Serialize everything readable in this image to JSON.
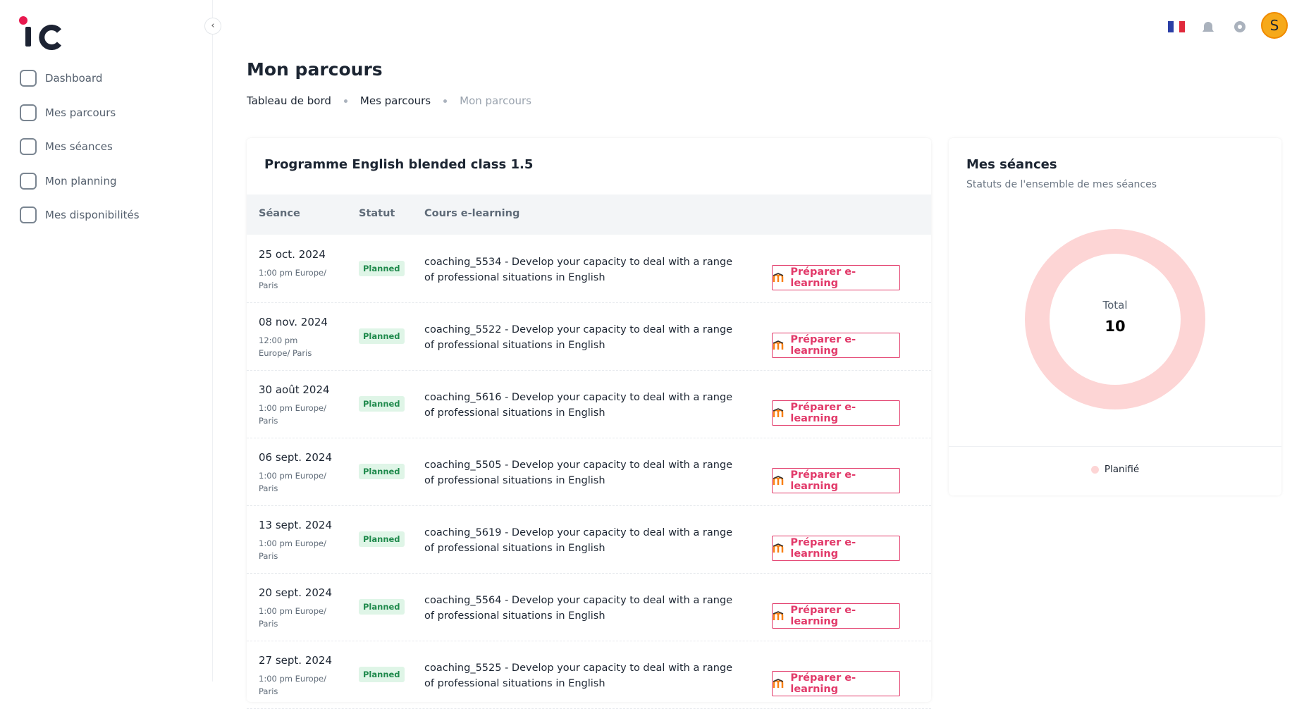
{
  "logo": "IC",
  "nav": [
    "Dashboard",
    "Mes parcours",
    "Mes séances",
    "Mon planning",
    "Mes disponibilités"
  ],
  "avatar": "S",
  "header": {
    "title": "Mon parcours",
    "breadcrumbs": [
      "Tableau de bord",
      "Mes parcours",
      "Mon parcours"
    ]
  },
  "table": {
    "title": "Programme English blended class 1.5",
    "columns": [
      "Séance",
      "Statut",
      "Cours e-learning"
    ],
    "rows": [
      {
        "date": "25 oct. 2024",
        "time": "1:00 pm Europe/ Paris",
        "status": "Planned",
        "course": "coaching_5534 - Develop your capacity to deal with a range of professional situations in English",
        "action": "Préparer e-learning"
      },
      {
        "date": "08 nov. 2024",
        "time": "12:00 pm Europe/ Paris",
        "status": "Planned",
        "course": "coaching_5522 - Develop your capacity to deal with a range of professional situations in English",
        "action": "Préparer e-learning"
      },
      {
        "date": "30 août 2024",
        "time": "1:00 pm Europe/ Paris",
        "status": "Planned",
        "course": "coaching_5616 - Develop your capacity to deal with a range of professional situations in English",
        "action": "Préparer e-learning"
      },
      {
        "date": "06 sept. 2024",
        "time": "1:00 pm Europe/ Paris",
        "status": "Planned",
        "course": "coaching_5505 - Develop your capacity to deal with a range of professional situations in English",
        "action": "Préparer e-learning"
      },
      {
        "date": "13 sept. 2024",
        "time": "1:00 pm Europe/ Paris",
        "status": "Planned",
        "course": "coaching_5619 - Develop your capacity to deal with a range of professional situations in English",
        "action": "Préparer e-learning"
      },
      {
        "date": "20 sept. 2024",
        "time": "1:00 pm Europe/ Paris",
        "status": "Planned",
        "course": "coaching_5564 - Develop your capacity to deal with a range of professional situations in English",
        "action": "Préparer e-learning"
      },
      {
        "date": "27 sept. 2024",
        "time": "1:00 pm Europe/ Paris",
        "status": "Planned",
        "course": "coaching_5525 - Develop your capacity to deal with a range of professional situations in English",
        "action": "Préparer e-learning"
      }
    ]
  },
  "sessions": {
    "title": "Mes séances",
    "subtitle": "Statuts de l'ensemble de mes séances",
    "total_label": "Total",
    "total": 10,
    "segments": [
      {
        "name": "Planifié",
        "color": "#fdd5d5",
        "value": 10
      }
    ]
  }
}
